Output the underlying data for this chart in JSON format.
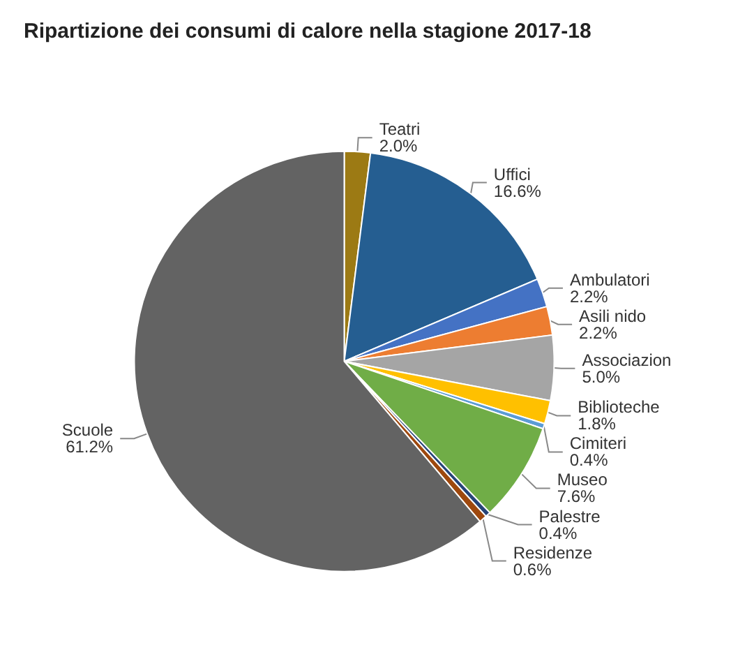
{
  "chart_data": {
    "type": "pie",
    "title": "Ripartizione dei consumi di calore nella stagione 2017-18",
    "categories": [
      "Teatri",
      "Uffici",
      "Ambulatori",
      "Asili nido",
      "Associazion",
      "Biblioteche",
      "Cimiteri",
      "Museo",
      "Palestre",
      "Residenze",
      "Scuole"
    ],
    "values": [
      2.0,
      16.6,
      2.2,
      2.2,
      5.0,
      1.8,
      0.4,
      7.6,
      0.4,
      0.6,
      61.2
    ],
    "value_labels": [
      "2.0%",
      "16.6%",
      "2.2%",
      "2.2%",
      "5.0%",
      "1.8%",
      "0.4%",
      "7.6%",
      "0.4%",
      "0.6%",
      "61.2%"
    ],
    "colors": [
      "#9c7a14",
      "#255e91",
      "#4472c4",
      "#ed7d31",
      "#a5a5a5",
      "#ffc000",
      "#5b9bd5",
      "#70ad47",
      "#264478",
      "#9e480e",
      "#636363"
    ],
    "legend": false
  }
}
